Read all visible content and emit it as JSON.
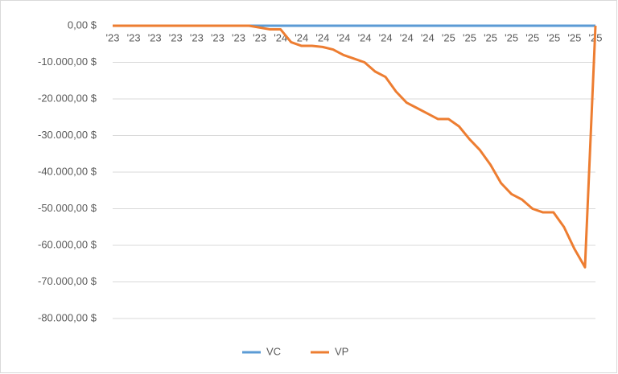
{
  "chart_data": {
    "type": "line",
    "categories": [
      "'23",
      null,
      "'23",
      null,
      "'23",
      null,
      "'23",
      null,
      "'23",
      null,
      "'23",
      null,
      "'23",
      null,
      "'23",
      null,
      "'24",
      null,
      "'24",
      null,
      "'24",
      null,
      "'24",
      null,
      "'24",
      null,
      "'24",
      null,
      "'24",
      null,
      "'24",
      null,
      "'25",
      null,
      "'25",
      null,
      "'25",
      null,
      "'25",
      null,
      "'25",
      null,
      "'25",
      null,
      "'25",
      null,
      "'25"
    ],
    "series": [
      {
        "name": "VC",
        "color": "#5b9bd5",
        "values": [
          0,
          0,
          0,
          0,
          0,
          0,
          0,
          0,
          0,
          0,
          0,
          0,
          0,
          0,
          0,
          0,
          0,
          0,
          0,
          0,
          0,
          0,
          0,
          0,
          0,
          0,
          0,
          0,
          0,
          0,
          0,
          0,
          0,
          0,
          0,
          0,
          0,
          0,
          0,
          0,
          0,
          0,
          0,
          0,
          0,
          0,
          0
        ]
      },
      {
        "name": "VP",
        "color": "#ed7d31",
        "values": [
          0,
          0,
          0,
          0,
          0,
          0,
          0,
          0,
          0,
          0,
          0,
          0,
          0,
          0,
          -500,
          -1000,
          -1000,
          -4500,
          -5500,
          -5500,
          -5800,
          -6500,
          -8000,
          -9000,
          -10000,
          -12500,
          -14000,
          -18000,
          -21000,
          -22500,
          -24000,
          -25500,
          -25500,
          -27500,
          -31000,
          -34000,
          -38000,
          -43000,
          -46000,
          -47500,
          -50000,
          -51000,
          -51000,
          -55000,
          -61000,
          -66000,
          0
        ]
      }
    ],
    "ylim": [
      -80000,
      0
    ],
    "yticks": [
      {
        "value": 0,
        "label": "0,00 $"
      },
      {
        "value": -10000,
        "label": "-10.000,00 $"
      },
      {
        "value": -20000,
        "label": "-20.000,00 $"
      },
      {
        "value": -30000,
        "label": "-30.000,00 $"
      },
      {
        "value": -40000,
        "label": "-40.000,00 $"
      },
      {
        "value": -50000,
        "label": "-50.000,00 $"
      },
      {
        "value": -60000,
        "label": "-60.000,00 $"
      },
      {
        "value": -70000,
        "label": "-70.000,00 $"
      },
      {
        "value": -80000,
        "label": "-80.000,00 $"
      }
    ],
    "grid": true,
    "legend": "bottom"
  }
}
